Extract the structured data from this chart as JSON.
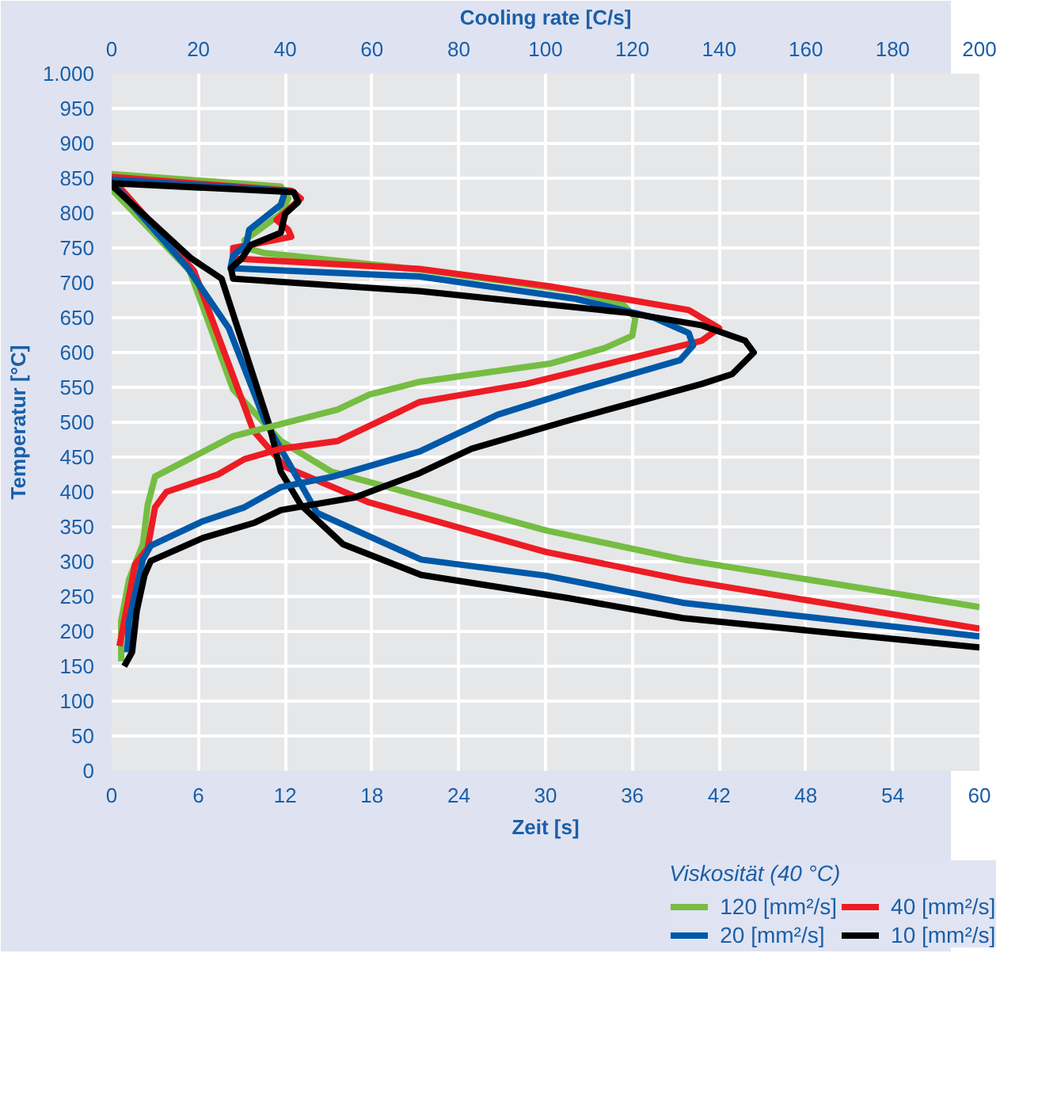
{
  "chart_data": {
    "type": "line",
    "xlabel": "Zeit [s]",
    "x2label": "Cooling rate [C/s]",
    "ylabel": "Temperatur [°C]",
    "legend_title": "Viskosität (40 °C)",
    "legend": "bottom",
    "grid": true,
    "line_style": "solid",
    "marker": "none",
    "xlim": [
      0,
      60
    ],
    "xticks": [
      0,
      6,
      12,
      18,
      24,
      30,
      36,
      42,
      48,
      54,
      60
    ],
    "x2lim": [
      0,
      200
    ],
    "x2ticks": [
      0,
      20,
      40,
      60,
      80,
      100,
      120,
      140,
      160,
      180,
      200
    ],
    "ylim": [
      0,
      1000
    ],
    "yticks": [
      0,
      50,
      100,
      150,
      200,
      250,
      300,
      350,
      400,
      450,
      500,
      550,
      600,
      650,
      700,
      750,
      800,
      850,
      900,
      950,
      {
        "value": 1000,
        "label": "1.000"
      }
    ],
    "series": [
      {
        "name": "120 [mm²/s]",
        "color": "#76bd43",
        "x": [
          0,
          5.4,
          8.4,
          11.7,
          15.2,
          30,
          39.5,
          60
        ],
        "values": [
          834,
          717,
          547,
          473,
          429,
          345,
          303,
          235
        ]
      },
      {
        "name": "40 [mm²/s]",
        "color": "#ed1c24",
        "x": [
          0,
          5.7,
          9.8,
          12,
          17.8,
          30,
          39.5,
          60
        ],
        "values": [
          850,
          717,
          488,
          436,
          385,
          314,
          274,
          204
        ]
      },
      {
        "name": "20 [mm²/s]",
        "color": "#0058a8",
        "x": [
          0,
          5.2,
          8.1,
          10.6,
          14.2,
          21.4,
          30,
          39.5,
          60
        ],
        "values": [
          845,
          723,
          635,
          502,
          370,
          303,
          280,
          241,
          193
        ]
      },
      {
        "name": "10 [mm²/s]",
        "color": "#000000",
        "x": [
          0,
          5.5,
          7.6,
          10.9,
          11.7,
          13.1,
          16,
          21.4,
          31.5,
          39.5,
          60
        ],
        "values": [
          840,
          735,
          706,
          496,
          429,
          381,
          325,
          281,
          248,
          219,
          177
        ]
      },
      {
        "axis": "x2",
        "color": "#76bd43",
        "x": [
          0,
          39,
          40.7,
          39,
          34,
          30.6,
          31,
          35,
          71,
          107,
          118,
          120.7,
          120,
          113.5,
          101,
          71,
          59.5,
          52,
          28,
          10,
          8.3,
          7.2,
          4,
          2.2,
          2.2
        ],
        "values": [
          856,
          838,
          821,
          799,
          776,
          761,
          750,
          743,
          719,
          688,
          668,
          650,
          624,
          606,
          584,
          558,
          540,
          518,
          480,
          422,
          381,
          325,
          274,
          215,
          157
        ]
      },
      {
        "axis": "x2",
        "color": "#ed1c24",
        "x": [
          0,
          41.4,
          43.6,
          38,
          40.7,
          41.4,
          34,
          28,
          28,
          71,
          101,
          133,
          140,
          136,
          119,
          95.5,
          71,
          52,
          39,
          30.6,
          24.5,
          12.6,
          10,
          8.3,
          5.4,
          3.6,
          1.8
        ],
        "values": [
          852,
          832,
          821,
          790,
          776,
          766,
          757,
          750,
          735,
          720,
          695,
          661,
          635,
          617,
          591,
          555,
          529,
          473,
          462,
          447,
          425,
          400,
          378,
          319,
          296,
          237,
          179
        ]
      },
      {
        "axis": "x2",
        "color": "#0058a8",
        "x": [
          0,
          40,
          39,
          31.7,
          31,
          28,
          27.4,
          71,
          107,
          125,
          133,
          134,
          131,
          107,
          89,
          71,
          51,
          39,
          30.6,
          21,
          9,
          7.2,
          4,
          3.6
        ],
        "values": [
          848,
          832,
          812,
          776,
          754,
          739,
          721,
          709,
          677,
          650,
          628,
          610,
          589,
          546,
          511,
          458,
          422,
          407,
          378,
          358,
          323,
          303,
          215,
          170
        ]
      },
      {
        "axis": "x2",
        "color": "#000000",
        "x": [
          0,
          42,
          43,
          40,
          39,
          32,
          30,
          27.5,
          28,
          71,
          119,
          136,
          146,
          148,
          143,
          136,
          105,
          83,
          71,
          56,
          39,
          33,
          21,
          9,
          7.6,
          5.8,
          4.7,
          2.9
        ],
        "values": [
          843,
          830,
          816,
          799,
          772,
          754,
          735,
          721,
          706,
          688,
          657,
          639,
          617,
          600,
          569,
          555,
          502,
          462,
          427,
          392,
          374,
          356,
          334,
          301,
          281,
          230,
          170,
          150
        ]
      }
    ]
  }
}
